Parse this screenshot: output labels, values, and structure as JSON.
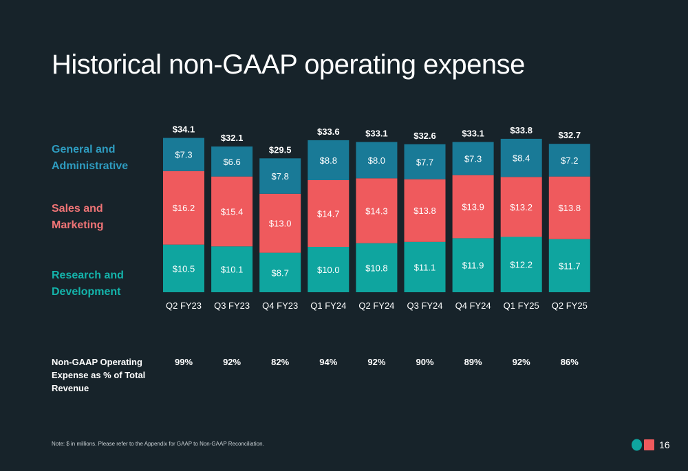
{
  "slide": {
    "title": "Historical non-GAAP operating expense",
    "note": "Note: $ in millions. Please refer to the Appendix for GAAP to Non-GAAP Reconciliation.",
    "page_number": "16"
  },
  "legend": {
    "ga": [
      "General and",
      "Administrative"
    ],
    "sm": [
      "Sales and",
      "Marketing"
    ],
    "rd": [
      "Research and",
      "Development"
    ]
  },
  "pct_row": {
    "label": [
      "Non-GAAP Operating",
      "Expense as % of Total",
      "Revenue"
    ],
    "values": [
      "99%",
      "92%",
      "82%",
      "94%",
      "92%",
      "90%",
      "89%",
      "92%",
      "86%"
    ]
  },
  "colors": {
    "background": "#17232a",
    "ga": "#197a97",
    "sm": "#ef5a5d",
    "rd": "#0fa59f",
    "ga_label": "#2e9cc0",
    "sm_label": "#f07476",
    "rd_label": "#14b3aa"
  },
  "chart_data": {
    "type": "bar",
    "stacked": true,
    "categories": [
      "Q2 FY23",
      "Q3 FY23",
      "Q4 FY23",
      "Q1 FY24",
      "Q2 FY24",
      "Q3 FY24",
      "Q4 FY24",
      "Q1 FY25",
      "Q2 FY25"
    ],
    "totals": [
      "$34.1",
      "$32.1",
      "$29.5",
      "$33.6",
      "$33.1",
      "$32.6",
      "$33.1",
      "$33.8",
      "$32.7"
    ],
    "series": [
      {
        "name": "Research and Development",
        "key": "rd",
        "values": [
          10.5,
          10.1,
          8.7,
          10.0,
          10.8,
          11.1,
          11.9,
          12.2,
          11.7
        ],
        "labels": [
          "$10.5",
          "$10.1",
          "$8.7",
          "$10.0",
          "$10.8",
          "$11.1",
          "$11.9",
          "$12.2",
          "$11.7"
        ]
      },
      {
        "name": "Sales and Marketing",
        "key": "sm",
        "values": [
          16.2,
          15.4,
          13.0,
          14.7,
          14.3,
          13.8,
          13.9,
          13.2,
          13.8
        ],
        "labels": [
          "$16.2",
          "$15.4",
          "$13.0",
          "$14.7",
          "$14.3",
          "$13.8",
          "$13.9",
          "$13.2",
          "$13.8"
        ]
      },
      {
        "name": "General and Administrative",
        "key": "ga",
        "values": [
          7.3,
          6.6,
          7.8,
          8.8,
          8.0,
          7.7,
          7.3,
          8.4,
          7.2
        ],
        "labels": [
          "$7.3",
          "$6.6",
          "$7.8",
          "$8.8",
          "$8.0",
          "$7.7",
          "$7.3",
          "$8.4",
          "$7.2"
        ]
      }
    ],
    "unit": "$ in millions"
  }
}
